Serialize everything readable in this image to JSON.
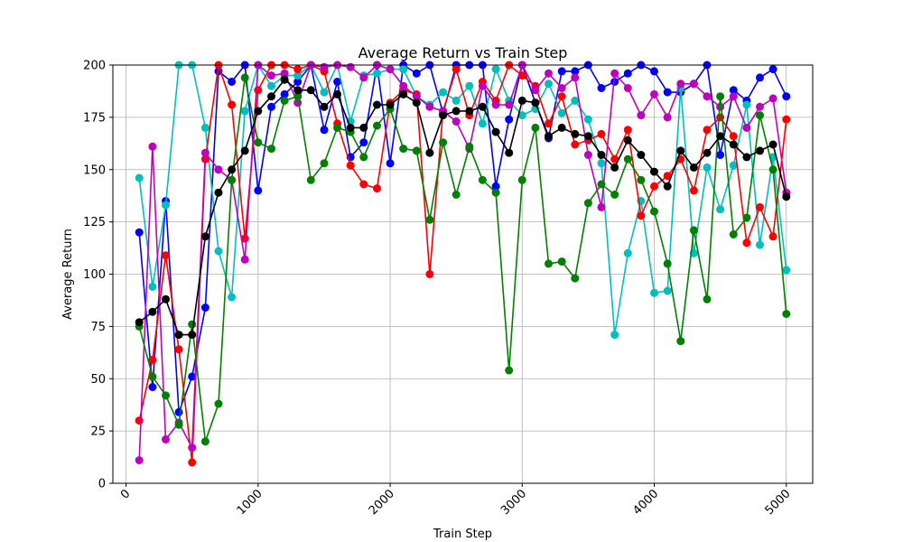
{
  "chart_data": {
    "type": "line",
    "title": "Average Return vs Train Step",
    "xlabel": "Train Step",
    "ylabel": "Average Return",
    "xlim": [
      -100,
      5200
    ],
    "ylim": [
      0,
      200
    ],
    "xticks": [
      0,
      1000,
      2000,
      3000,
      4000,
      5000
    ],
    "yticks": [
      0,
      25,
      50,
      75,
      100,
      125,
      150,
      175,
      200
    ],
    "grid": true,
    "legend": "none",
    "x": [
      100,
      200,
      300,
      400,
      500,
      600,
      700,
      800,
      900,
      1000,
      1100,
      1200,
      1300,
      1400,
      1500,
      1600,
      1700,
      1800,
      1900,
      2000,
      2100,
      2200,
      2300,
      2400,
      2500,
      2600,
      2700,
      2800,
      2900,
      3000,
      3100,
      3200,
      3300,
      3400,
      3500,
      3600,
      3700,
      3800,
      3900,
      4000,
      4100,
      4200,
      4300,
      4400,
      4500,
      4600,
      4700,
      4800,
      4900,
      5000
    ],
    "series": [
      {
        "color": "#0000ff",
        "values": [
          120,
          46,
          135,
          34,
          51,
          84,
          197,
          192,
          200,
          140,
          180,
          186,
          192,
          200,
          169,
          192,
          156,
          163,
          200,
          153,
          200,
          196,
          200,
          177,
          200,
          200,
          200,
          142,
          174,
          200,
          182,
          165,
          197,
          197,
          200,
          189,
          192,
          196,
          200,
          197,
          187,
          187,
          191,
          200,
          157,
          188,
          183,
          194,
          198,
          185
        ]
      },
      {
        "color": "#00bfbf",
        "values": [
          146,
          94,
          133,
          200,
          200,
          170,
          111,
          89,
          178,
          200,
          190,
          195,
          195,
          200,
          187,
          200,
          173,
          195,
          196,
          198,
          198,
          185,
          181,
          187,
          183,
          190,
          172,
          198,
          183,
          176,
          179,
          191,
          177,
          183,
          174,
          153,
          71,
          110,
          135,
          91,
          92,
          189,
          110,
          151,
          131,
          152,
          181,
          114,
          156,
          102
        ]
      },
      {
        "color": "#ff0000",
        "values": [
          30,
          59,
          109,
          64,
          10,
          155,
          200,
          181,
          117,
          188,
          200,
          200,
          198,
          200,
          197,
          172,
          152,
          143,
          141,
          182,
          188,
          186,
          100,
          178,
          198,
          176,
          192,
          183,
          200,
          195,
          190,
          172,
          185,
          162,
          164,
          167,
          155,
          169,
          128,
          142,
          147,
          155,
          140,
          169,
          175,
          166,
          115,
          132,
          118,
          174
        ]
      },
      {
        "color": "#bf00bf",
        "values": [
          11,
          161,
          21,
          29,
          17,
          158,
          150,
          145,
          107,
          200,
          195,
          196,
          182,
          200,
          199,
          200,
          199,
          194,
          200,
          198,
          190,
          185,
          180,
          178,
          173,
          160,
          190,
          181,
          181,
          200,
          188,
          196,
          189,
          194,
          157,
          132,
          196,
          189,
          176,
          186,
          175,
          191,
          191,
          185,
          180,
          185,
          170,
          180,
          184,
          139
        ]
      },
      {
        "color": "#008000",
        "values": [
          75,
          51,
          42,
          28,
          76,
          20,
          38,
          145,
          194,
          163,
          160,
          183,
          185,
          145,
          153,
          170,
          168,
          156,
          171,
          179,
          160,
          159,
          126,
          163,
          138,
          161,
          145,
          139,
          54,
          145,
          170,
          105,
          106,
          98,
          134,
          143,
          138,
          155,
          145,
          130,
          105,
          68,
          121,
          88,
          185,
          119,
          127,
          176,
          150,
          81
        ]
      },
      {
        "color": "#000000",
        "values": [
          77,
          82,
          88,
          71,
          71,
          118,
          139,
          150,
          159,
          178,
          185,
          193,
          188,
          188,
          180,
          186,
          170,
          170,
          181,
          181,
          186,
          182,
          158,
          176,
          178,
          178,
          180,
          168,
          158,
          183,
          182,
          166,
          170,
          167,
          166,
          157,
          151,
          164,
          157,
          149,
          142,
          159,
          151,
          158,
          166,
          162,
          156,
          159,
          162,
          137
        ]
      }
    ]
  }
}
